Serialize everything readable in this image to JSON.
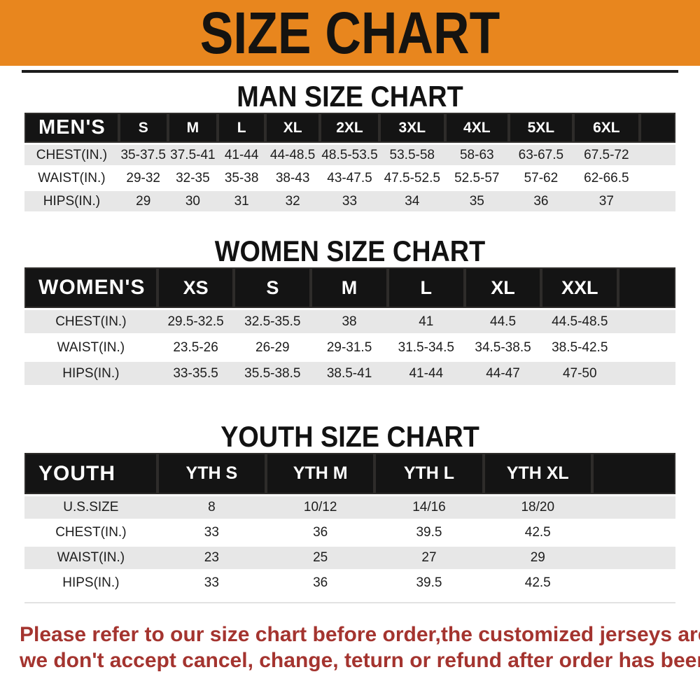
{
  "banner": {
    "title": "SIZE CHART"
  },
  "sections": [
    {
      "heading": "MAN SIZE CHART",
      "header_label": "MEN'S",
      "columns": [
        "S",
        "M",
        "L",
        "XL",
        "2XL",
        "3XL",
        "4XL",
        "5XL",
        "6XL"
      ],
      "rows": [
        {
          "label": "CHEST(IN.)",
          "values": [
            "35-37.5",
            "37.5-41",
            "41-44",
            "44-48.5",
            "48.5-53.5",
            "53.5-58",
            "58-63",
            "63-67.5",
            "67.5-72"
          ]
        },
        {
          "label": "WAIST(IN.)",
          "values": [
            "29-32",
            "32-35",
            "35-38",
            "38-43",
            "43-47.5",
            "47.5-52.5",
            "52.5-57",
            "57-62",
            "62-66.5"
          ]
        },
        {
          "label": "HIPS(IN.)",
          "values": [
            "29",
            "30",
            "31",
            "32",
            "33",
            "34",
            "35",
            "36",
            "37"
          ]
        }
      ]
    },
    {
      "heading": "WOMEN SIZE CHART",
      "header_label": "WOMEN'S",
      "columns": [
        "XS",
        "S",
        "M",
        "L",
        "XL",
        "XXL"
      ],
      "rows": [
        {
          "label": "CHEST(IN.)",
          "values": [
            "29.5-32.5",
            "32.5-35.5",
            "38",
            "41",
            "44.5",
            "44.5-48.5"
          ]
        },
        {
          "label": "WAIST(IN.)",
          "values": [
            "23.5-26",
            "26-29",
            "29-31.5",
            "31.5-34.5",
            "34.5-38.5",
            "38.5-42.5"
          ]
        },
        {
          "label": "HIPS(IN.)",
          "values": [
            "33-35.5",
            "35.5-38.5",
            "38.5-41",
            "41-44",
            "44-47",
            "47-50"
          ]
        }
      ]
    },
    {
      "heading": "YOUTH SIZE CHART",
      "header_label": "YOUTH",
      "columns": [
        "YTH S",
        "YTH M",
        "YTH L",
        "YTH XL"
      ],
      "rows": [
        {
          "label": "U.S.SIZE",
          "values": [
            "8",
            "10/12",
            "14/16",
            "18/20"
          ]
        },
        {
          "label": "CHEST(IN.)",
          "values": [
            "33",
            "36",
            "39.5",
            "42.5"
          ]
        },
        {
          "label": "WAIST(IN.)",
          "values": [
            "23",
            "25",
            "27",
            "29"
          ]
        },
        {
          "label": "HIPS(IN.)",
          "values": [
            "33",
            "36",
            "39.5",
            "42.5"
          ]
        }
      ]
    }
  ],
  "footer": {
    "line1": "Please refer to our size chart before order,the customized jerseys are special products,",
    "line2": "we don't accept cancel, change, teturn or refund after order has been placed!"
  },
  "colors": {
    "banner_bg": "#e8861e",
    "banner_text": "#151310",
    "table_header_bg": "#141414",
    "table_header_text": "#ffffff",
    "row_alt_bg": "#e7e7e7",
    "notice_text": "#a4342f"
  }
}
